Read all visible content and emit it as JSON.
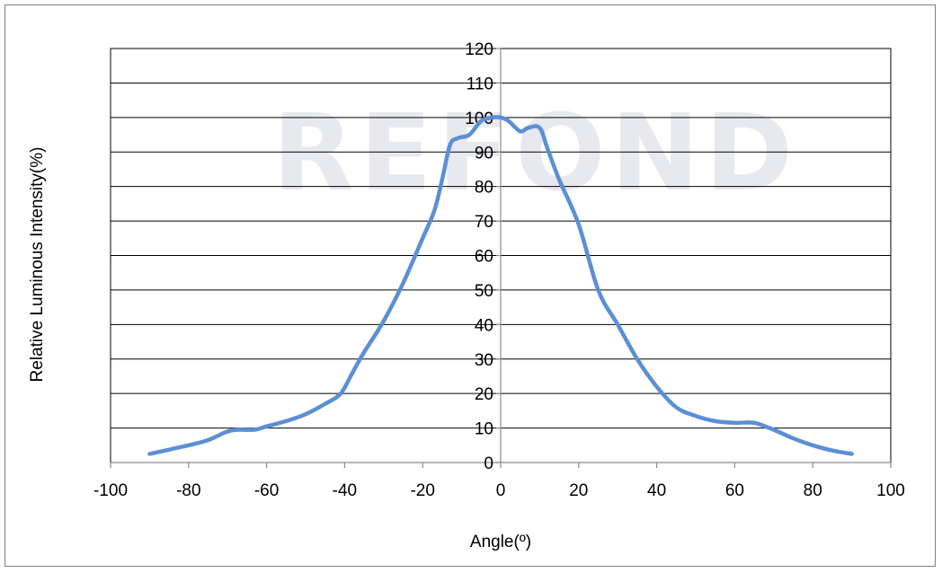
{
  "watermark": "REFOND",
  "chart_data": {
    "type": "line",
    "title": "",
    "xlabel": "Angle(º)",
    "ylabel": "Relative Luminous Intensity(%)",
    "xlim": [
      -100,
      100
    ],
    "ylim": [
      0,
      120
    ],
    "x_ticks": [
      -100,
      -80,
      -60,
      -40,
      -20,
      0,
      20,
      40,
      60,
      80,
      100
    ],
    "y_ticks": [
      0,
      10,
      20,
      30,
      40,
      50,
      60,
      70,
      80,
      90,
      100,
      110,
      120
    ],
    "grid": "horizontal",
    "legend": "none",
    "colors": {
      "line": "#5b8fd5",
      "grid": "#000000",
      "axis": "#8c8c8c",
      "watermark": "#e7e9ee"
    },
    "series": [
      {
        "x": [
          -90,
          -80,
          -75,
          -70,
          -67,
          -63,
          -60,
          -55,
          -50,
          -45,
          -41,
          -38,
          -35,
          -30,
          -25,
          -20,
          -17,
          -15,
          -13,
          -11,
          -8,
          -5,
          -2,
          0,
          2,
          5,
          7,
          10,
          12,
          15,
          20,
          25,
          30,
          35,
          40,
          45,
          50,
          55,
          60,
          65,
          70,
          75,
          80,
          85,
          90
        ],
        "y": [
          2.5,
          5,
          6.5,
          9,
          9.5,
          9.5,
          10.5,
          12,
          14,
          17,
          20,
          26,
          32,
          41,
          52,
          65,
          73,
          82,
          92,
          94,
          95,
          99,
          100,
          100,
          99,
          96,
          97,
          97,
          91,
          82,
          69,
          50,
          40,
          30,
          22,
          16,
          13.5,
          12,
          11.5,
          11.5,
          9.5,
          7,
          5,
          3.5,
          2.5
        ]
      }
    ]
  }
}
